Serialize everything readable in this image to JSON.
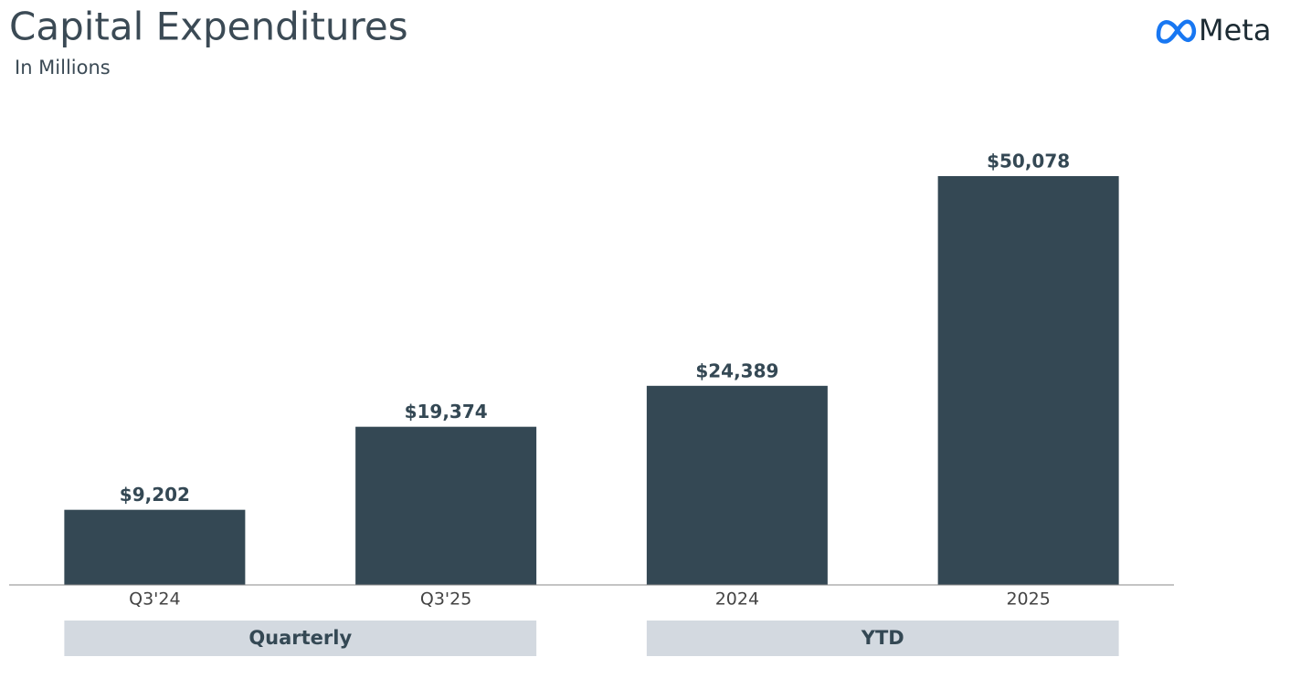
{
  "chart_data": {
    "type": "bar",
    "title": "Capital Expenditures",
    "subtitle": "In Millions",
    "logo": "Meta",
    "categories": [
      "Q3'24",
      "Q3'25",
      "2024",
      "2025"
    ],
    "values": [
      9202,
      19374,
      24389,
      50078
    ],
    "value_labels": [
      "$9,202",
      "$19,374",
      "$24,389",
      "$50,078"
    ],
    "groups": [
      "Quarterly",
      "YTD"
    ],
    "color": "#344854"
  }
}
